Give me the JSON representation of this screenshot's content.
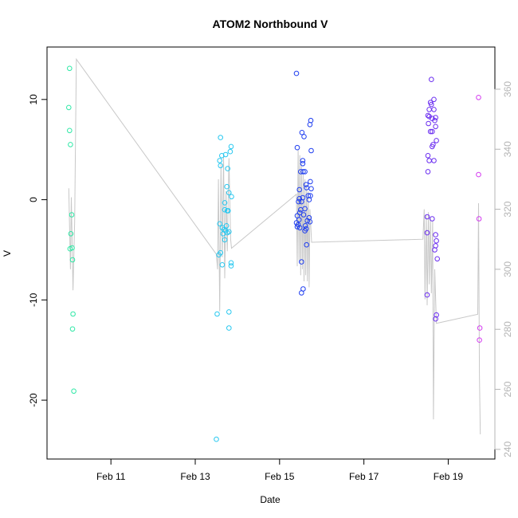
{
  "chart_data": {
    "type": "scatter",
    "title": "ATOM2 Northbound V",
    "xlabel": "Date",
    "ylabel": "V",
    "x_ticks": [
      {
        "value": 11,
        "label": "Feb 11"
      },
      {
        "value": 13,
        "label": "Feb 13"
      },
      {
        "value": 15,
        "label": "Feb 15"
      },
      {
        "value": 17,
        "label": "Feb 17"
      },
      {
        "value": 19,
        "label": "Feb 19"
      }
    ],
    "xlim": [
      9.73,
      19.88
    ],
    "ylim": [
      -25.0,
      14.2
    ],
    "y_ticks": [
      -20,
      -10,
      0,
      10
    ],
    "y2lim": [
      239.7,
      370.6
    ],
    "y2_ticks": [
      240,
      260,
      280,
      300,
      320,
      340,
      360
    ],
    "grid": false,
    "colors": {
      "heading_line": "#c8c8c8",
      "right_axis": "#b4b4b4",
      "burst1": "#2ee8a6",
      "burst2": "#28c8f0",
      "burst3": "#1f3ef0",
      "burst4": "#6a2cf0",
      "burst5": "#d43cf0"
    },
    "series": [
      {
        "color": "#2ee8a6",
        "points": [
          [
            10.02,
            13.1
          ],
          [
            10.0,
            9.2
          ],
          [
            10.02,
            6.9
          ],
          [
            10.04,
            5.5
          ],
          [
            10.07,
            -1.5
          ],
          [
            10.05,
            -3.4
          ],
          [
            10.03,
            -4.9
          ],
          [
            10.08,
            -4.8
          ],
          [
            10.09,
            -6.0
          ],
          [
            10.1,
            -11.4
          ],
          [
            10.09,
            -12.9
          ],
          [
            10.12,
            -19.1
          ]
        ]
      },
      {
        "color": "#28c8f0",
        "points": [
          [
            13.6,
            6.2
          ],
          [
            13.58,
            3.9
          ],
          [
            13.63,
            4.4
          ],
          [
            13.72,
            4.5
          ],
          [
            13.6,
            3.4
          ],
          [
            13.85,
            5.3
          ],
          [
            13.83,
            4.8
          ],
          [
            13.77,
            3.1
          ],
          [
            13.75,
            1.3
          ],
          [
            13.8,
            0.7
          ],
          [
            13.86,
            0.3
          ],
          [
            13.7,
            -0.3
          ],
          [
            13.7,
            -1.0
          ],
          [
            13.78,
            -1.1
          ],
          [
            13.76,
            -1.1
          ],
          [
            13.58,
            -2.4
          ],
          [
            13.64,
            -2.8
          ],
          [
            13.74,
            -2.6
          ],
          [
            13.68,
            -3.0
          ],
          [
            13.72,
            -3.1
          ],
          [
            13.8,
            -3.2
          ],
          [
            13.66,
            -3.4
          ],
          [
            13.76,
            -3.3
          ],
          [
            13.7,
            -4.0
          ],
          [
            13.6,
            -5.3
          ],
          [
            13.56,
            -5.5
          ],
          [
            13.64,
            -6.5
          ],
          [
            13.85,
            -6.3
          ],
          [
            13.85,
            -6.6
          ],
          [
            13.52,
            -11.4
          ],
          [
            13.8,
            -11.2
          ],
          [
            13.8,
            -12.8
          ],
          [
            13.5,
            -23.9
          ]
        ]
      },
      {
        "color": "#1f3ef0",
        "points": [
          [
            15.4,
            12.6
          ],
          [
            15.74,
            7.9
          ],
          [
            15.72,
            7.5
          ],
          [
            15.53,
            6.7
          ],
          [
            15.58,
            6.3
          ],
          [
            15.42,
            5.2
          ],
          [
            15.75,
            4.9
          ],
          [
            15.55,
            3.9
          ],
          [
            15.55,
            3.6
          ],
          [
            15.5,
            2.8
          ],
          [
            15.6,
            2.8
          ],
          [
            15.56,
            2.8
          ],
          [
            15.73,
            1.8
          ],
          [
            15.63,
            1.5
          ],
          [
            15.47,
            1.0
          ],
          [
            15.64,
            1.2
          ],
          [
            15.75,
            1.1
          ],
          [
            15.68,
            0.4
          ],
          [
            15.73,
            0.4
          ],
          [
            15.7,
            0.0
          ],
          [
            15.52,
            -0.2
          ],
          [
            15.47,
            0.1
          ],
          [
            15.55,
            0.2
          ],
          [
            15.45,
            -0.2
          ],
          [
            15.6,
            -0.9
          ],
          [
            15.5,
            -1.0
          ],
          [
            15.48,
            -1.3
          ],
          [
            15.57,
            -1.5
          ],
          [
            15.42,
            -1.6
          ],
          [
            15.7,
            -1.8
          ],
          [
            15.46,
            -2.0
          ],
          [
            15.66,
            -2.1
          ],
          [
            15.4,
            -2.3
          ],
          [
            15.72,
            -2.2
          ],
          [
            15.44,
            -2.5
          ],
          [
            15.42,
            -2.7
          ],
          [
            15.48,
            -2.8
          ],
          [
            15.61,
            -2.6
          ],
          [
            15.63,
            -2.9
          ],
          [
            15.6,
            -3.1
          ],
          [
            15.64,
            -4.5
          ],
          [
            15.52,
            -6.2
          ],
          [
            15.56,
            -8.9
          ],
          [
            15.52,
            -9.3
          ]
        ]
      },
      {
        "color": "#6a2cf0",
        "points": [
          [
            18.6,
            12.0
          ],
          [
            18.66,
            10.0
          ],
          [
            18.58,
            9.7
          ],
          [
            18.6,
            9.5
          ],
          [
            18.55,
            9.0
          ],
          [
            18.66,
            9.0
          ],
          [
            18.52,
            8.4
          ],
          [
            18.55,
            8.3
          ],
          [
            18.62,
            8.1
          ],
          [
            18.7,
            8.2
          ],
          [
            18.68,
            7.9
          ],
          [
            18.53,
            7.6
          ],
          [
            18.7,
            7.3
          ],
          [
            18.62,
            6.8
          ],
          [
            18.58,
            6.8
          ],
          [
            18.64,
            5.5
          ],
          [
            18.62,
            5.3
          ],
          [
            18.72,
            5.9
          ],
          [
            18.52,
            4.4
          ],
          [
            18.55,
            3.9
          ],
          [
            18.66,
            3.9
          ],
          [
            18.52,
            2.8
          ],
          [
            18.5,
            -1.7
          ],
          [
            18.62,
            -1.9
          ],
          [
            18.5,
            -3.3
          ],
          [
            18.7,
            -3.5
          ],
          [
            18.72,
            -4.1
          ],
          [
            18.7,
            -4.6
          ],
          [
            18.68,
            -5.0
          ],
          [
            18.74,
            -5.9
          ],
          [
            18.5,
            -9.5
          ],
          [
            18.72,
            -11.5
          ],
          [
            18.7,
            -11.9
          ]
        ]
      },
      {
        "color": "#d43cf0",
        "points": [
          [
            19.72,
            10.2
          ],
          [
            19.72,
            2.5
          ],
          [
            19.73,
            -1.9
          ],
          [
            19.75,
            -12.8
          ],
          [
            19.74,
            -14.0
          ]
        ]
      }
    ],
    "heading_line": {
      "axis": "right",
      "points": [
        [
          10.0,
          327.0
        ],
        [
          10.04,
          300.0
        ],
        [
          10.06,
          324.0
        ],
        [
          10.1,
          293.0
        ],
        [
          10.14,
          316.0
        ],
        [
          10.18,
          370.0
        ],
        [
          13.5,
          305.0
        ],
        [
          13.53,
          300.0
        ],
        [
          13.55,
          330.0
        ],
        [
          13.58,
          286.0
        ],
        [
          13.61,
          335.0
        ],
        [
          13.64,
          304.0
        ],
        [
          13.67,
          338.0
        ],
        [
          13.7,
          297.0
        ],
        [
          13.73,
          326.0
        ],
        [
          13.76,
          306.0
        ],
        [
          13.8,
          337.0
        ],
        [
          13.84,
          310.0
        ],
        [
          13.86,
          307.0
        ],
        [
          15.4,
          325.0
        ],
        [
          15.42,
          301.0
        ],
        [
          15.44,
          340.0
        ],
        [
          15.46,
          303.0
        ],
        [
          15.48,
          338.0
        ],
        [
          15.5,
          298.0
        ],
        [
          15.52,
          335.0
        ],
        [
          15.54,
          300.0
        ],
        [
          15.56,
          332.0
        ],
        [
          15.58,
          296.0
        ],
        [
          15.6,
          330.0
        ],
        [
          15.62,
          298.0
        ],
        [
          15.64,
          328.0
        ],
        [
          15.66,
          296.0
        ],
        [
          15.68,
          326.0
        ],
        [
          15.7,
          294.0
        ],
        [
          15.72,
          320.0
        ],
        [
          15.76,
          309.0
        ],
        [
          18.4,
          310.0
        ],
        [
          18.43,
          320.0
        ],
        [
          18.45,
          290.0
        ],
        [
          18.48,
          318.0
        ],
        [
          18.5,
          288.0
        ],
        [
          18.53,
          319.0
        ],
        [
          18.55,
          295.0
        ],
        [
          18.58,
          317.0
        ],
        [
          18.6,
          292.0
        ],
        [
          18.63,
          316.0
        ],
        [
          18.65,
          250.0
        ],
        [
          18.68,
          300.0
        ],
        [
          18.72,
          282.0
        ],
        [
          19.7,
          285.0
        ],
        [
          19.72,
          322.0
        ],
        [
          19.74,
          265.0
        ],
        [
          19.76,
          245.0
        ]
      ]
    }
  }
}
